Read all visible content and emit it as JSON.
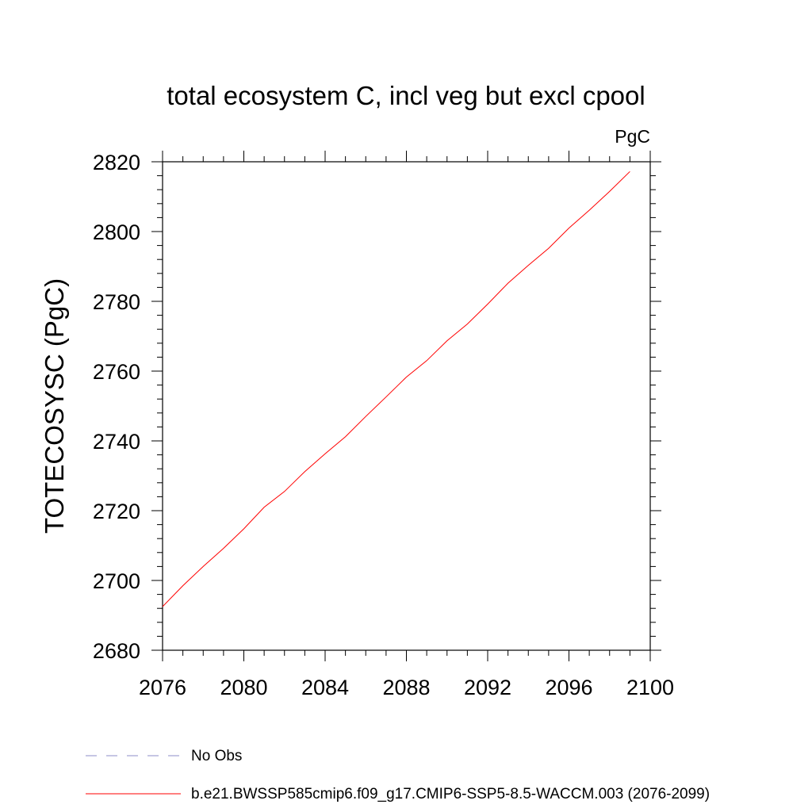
{
  "chart_data": {
    "type": "line",
    "title": "total ecosystem C, incl veg but excl cpool",
    "units_label": "PgC",
    "xlabel": "",
    "ylabel": "TOTECOSYSC  (PgC)",
    "xlim": [
      2076,
      2100
    ],
    "ylim": [
      2680,
      2820
    ],
    "x_ticks": [
      2076,
      2080,
      2084,
      2088,
      2092,
      2096,
      2100
    ],
    "y_ticks": [
      2680,
      2700,
      2720,
      2740,
      2760,
      2780,
      2800,
      2820
    ],
    "grid": false,
    "legend_position": "bottom-left, below plot",
    "series": [
      {
        "name": "b.e21.BWSSP585cmip6.f09_g17.CMIP6-SSP5-8.5-WACCM.003 (2076-2099)",
        "color": "#ff0000",
        "style": "solid",
        "x": [
          2076,
          2077,
          2078,
          2079,
          2080,
          2081,
          2082,
          2083,
          2084,
          2085,
          2086,
          2087,
          2088,
          2089,
          2090,
          2091,
          2092,
          2093,
          2094,
          2095,
          2096,
          2097,
          2098,
          2099
        ],
        "values": [
          2692.5,
          2698.5,
          2704.0,
          2709.2,
          2714.8,
          2721.0,
          2725.5,
          2731.2,
          2736.3,
          2741.2,
          2747.0,
          2752.6,
          2758.3,
          2763.0,
          2768.7,
          2773.5,
          2779.2,
          2785.2,
          2790.3,
          2795.2,
          2801.0,
          2806.1,
          2811.5,
          2817.2
        ]
      }
    ],
    "legend": [
      {
        "label": "No Obs",
        "color": "#8c8cc8",
        "style": "dashed"
      },
      {
        "label": "b.e21.BWSSP585cmip6.f09_g17.CMIP6-SSP5-8.5-WACCM.003 (2076-2099)",
        "color": "#ff0000",
        "style": "solid"
      }
    ]
  }
}
